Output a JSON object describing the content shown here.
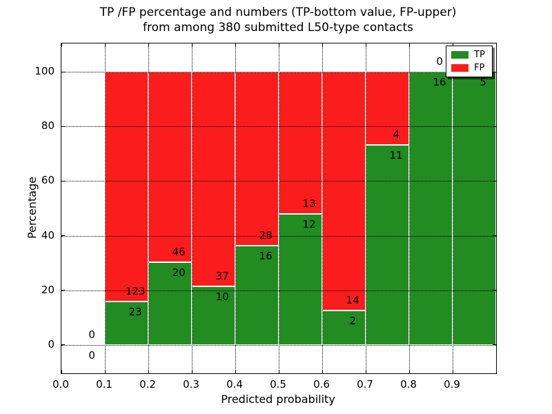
{
  "figure": {
    "title_line1": "TP /FP percentage and numbers (TP-bottom value, FP-upper)",
    "title_line2": "from among 380 submitted L50-type contacts",
    "xlabel": "Predicted probability",
    "ylabel": "Percentage"
  },
  "legend": {
    "position": "upper right",
    "items": [
      {
        "label": "TP",
        "color": "#228b22"
      },
      {
        "label": "FP",
        "color": "#fb1d1d"
      }
    ]
  },
  "chart_data": {
    "type": "bar",
    "stacked": true,
    "title": "TP /FP percentage and numbers (TP-bottom value, FP-upper) from among 380 submitted L50-type contacts",
    "xlabel": "Predicted probability",
    "ylabel": "Percentage",
    "total_contacts": 380,
    "xlim": [
      0.0,
      1.0
    ],
    "ylim": [
      -10.5,
      110.5
    ],
    "bin_width": 0.1,
    "x_ticks": [
      "0.0",
      "0.1",
      "0.2",
      "0.3",
      "0.4",
      "0.5",
      "0.6",
      "0.7",
      "0.8",
      "0.9"
    ],
    "y_ticks": [
      0,
      20,
      40,
      60,
      80,
      100
    ],
    "grid": true,
    "colors": {
      "tp": "#228b22",
      "fp": "#fb1d1d"
    },
    "bins": [
      {
        "x_start": 0.0,
        "tp": 0,
        "fp": 0,
        "tp_pct": 0
      },
      {
        "x_start": 0.1,
        "tp": 23,
        "fp": 123,
        "tp_pct": 15.75
      },
      {
        "x_start": 0.2,
        "tp": 20,
        "fp": 46,
        "tp_pct": 30.3
      },
      {
        "x_start": 0.3,
        "tp": 10,
        "fp": 37,
        "tp_pct": 21.28
      },
      {
        "x_start": 0.4,
        "tp": 16,
        "fp": 28,
        "tp_pct": 36.36
      },
      {
        "x_start": 0.5,
        "tp": 12,
        "fp": 13,
        "tp_pct": 48.0
      },
      {
        "x_start": 0.6,
        "tp": 2,
        "fp": 14,
        "tp_pct": 12.5
      },
      {
        "x_start": 0.7,
        "tp": 11,
        "fp": 4,
        "tp_pct": 73.33
      },
      {
        "x_start": 0.8,
        "tp": 16,
        "fp": 0,
        "tp_pct": 100
      },
      {
        "x_start": 0.9,
        "tp": 5,
        "fp": 0,
        "tp_pct": 100,
        "fp_label_occluded_by_legend": true
      }
    ]
  }
}
